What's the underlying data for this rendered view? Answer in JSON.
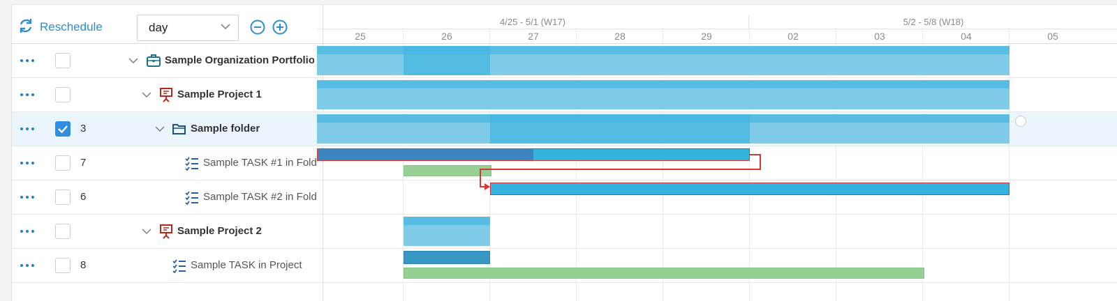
{
  "toolbar": {
    "reschedule_label": "Reschedule",
    "scale_value": "day"
  },
  "icons": {
    "reschedule": "refresh-icon",
    "dropdown": "chevron-down-icon",
    "zoom_out": "zoom-out-icon",
    "zoom_in": "zoom-in-icon",
    "row_menu": "more-dots-icon",
    "portfolio": "briefcase-icon",
    "project": "presentation-board-icon",
    "folder": "folder-icon",
    "task": "task-list-icon"
  },
  "colors": {
    "accent": "#2a8fd1",
    "summary_bar": "#7fcbe8",
    "task_bar": "#36b2df",
    "critical_outline": "#d93535",
    "baseline_bar": "#97d095",
    "project_icon": "#b5291d",
    "portfolio_icon": "#1f6e8c",
    "folder_icon": "#1d4f86"
  },
  "timeline": {
    "weeks": [
      {
        "label": "4/25 - 5/1 (W17)"
      },
      {
        "label": "5/2 - 5/8 (W18)"
      }
    ],
    "days": [
      "25",
      "26",
      "27",
      "28",
      "29",
      "02",
      "03",
      "04",
      "05"
    ]
  },
  "rows": [
    {
      "number": "",
      "checked": false,
      "name": "Sample Organization Portfolio",
      "type": "portfolio",
      "expanded": true
    },
    {
      "number": "",
      "checked": false,
      "name": "Sample Project 1",
      "type": "project",
      "expanded": true
    },
    {
      "number": "3",
      "checked": true,
      "name": "Sample folder",
      "type": "folder",
      "expanded": true,
      "selected": true
    },
    {
      "number": "7",
      "checked": false,
      "name": "Sample TASK #1 in Fold",
      "type": "task"
    },
    {
      "number": "6",
      "checked": false,
      "name": "Sample TASK #2 in Fold",
      "type": "task"
    },
    {
      "number": "",
      "checked": false,
      "name": "Sample Project 2",
      "type": "project",
      "expanded": true
    },
    {
      "number": "8",
      "checked": false,
      "name": "Sample TASK in Project",
      "type": "task"
    }
  ],
  "gantt": {
    "bars": [
      {
        "row": 0,
        "kind": "summary",
        "start_day": "25",
        "end_day": "04"
      },
      {
        "row": 0,
        "kind": "summary-highlight",
        "start_day": "26",
        "end_day": "26"
      },
      {
        "row": 1,
        "kind": "summary",
        "start_day": "25",
        "end_day": "04"
      },
      {
        "row": 2,
        "kind": "summary",
        "start_day": "25",
        "end_day": "04"
      },
      {
        "row": 2,
        "kind": "summary-highlight",
        "start_day": "27",
        "end_day": "29"
      },
      {
        "row": 3,
        "kind": "task-critical",
        "start_day": "25",
        "end_day": "29",
        "progress": 0.5
      },
      {
        "row": 3,
        "kind": "baseline",
        "start_day": "26",
        "end_day": "26"
      },
      {
        "row": 4,
        "kind": "task-critical",
        "start_day": "27",
        "end_day": "04"
      },
      {
        "row": 5,
        "kind": "summary",
        "start_day": "26",
        "end_day": "26"
      },
      {
        "row": 6,
        "kind": "task",
        "start_day": "26",
        "end_day": "26"
      },
      {
        "row": 6,
        "kind": "baseline",
        "start_day": "26",
        "end_day": "03"
      }
    ],
    "dependencies": [
      {
        "from_row": 3,
        "to_row": 4,
        "type": "finish-to-start"
      }
    ]
  }
}
